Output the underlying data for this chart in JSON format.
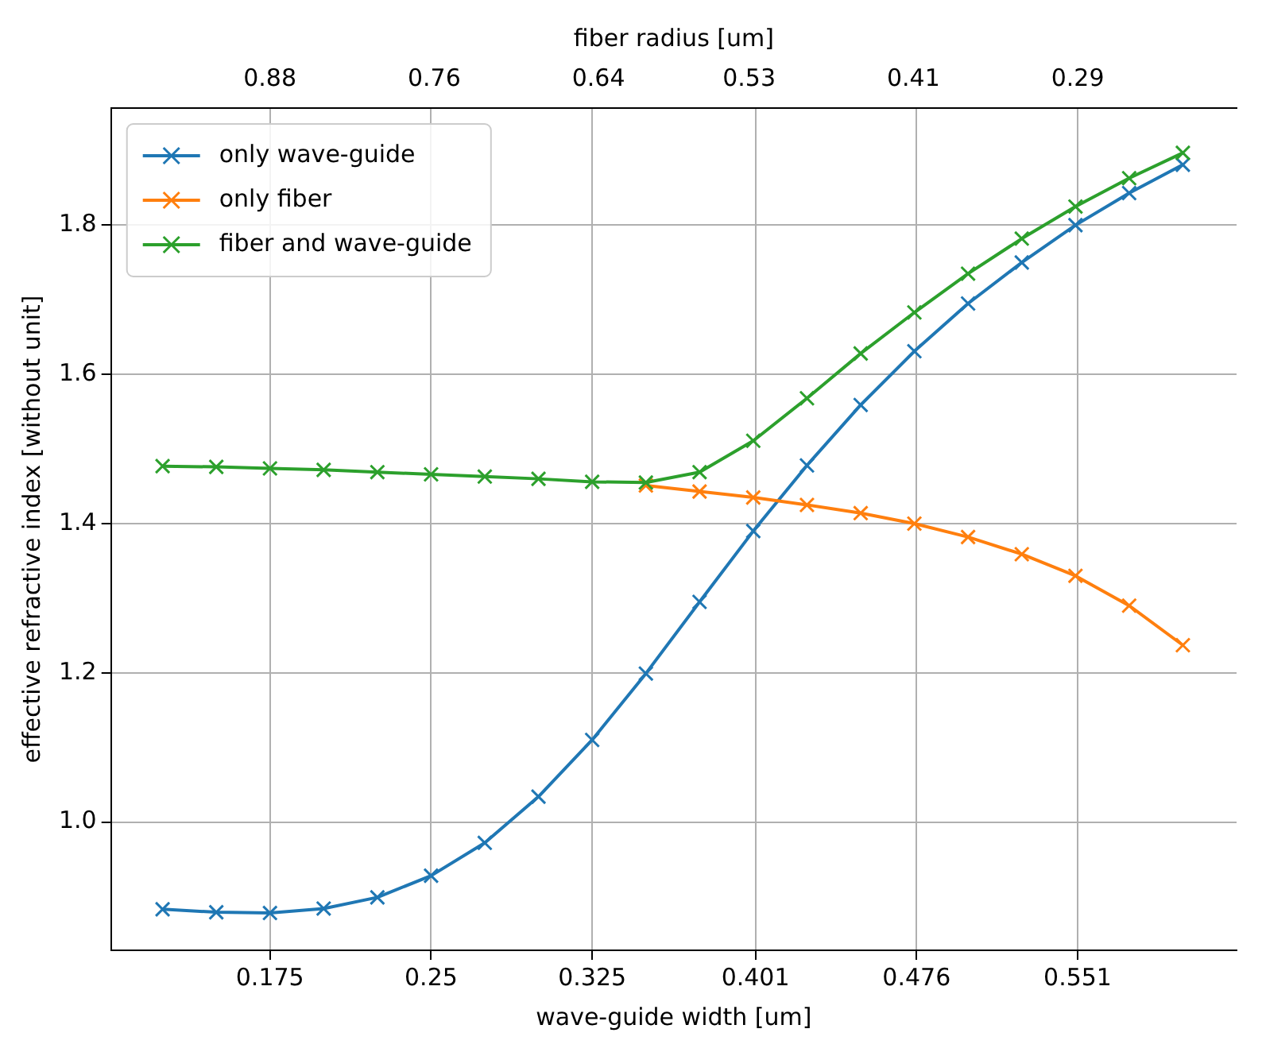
{
  "chart_data": {
    "type": "line",
    "xlabel": "wave-guide width [um]",
    "ylabel": "effective refractive index [without unit]",
    "x2label": "fiber radius [um]",
    "x": [
      0.125,
      0.15,
      0.175,
      0.2,
      0.225,
      0.25,
      0.275,
      0.3,
      0.325,
      0.35,
      0.375,
      0.4,
      0.425,
      0.45,
      0.475,
      0.5,
      0.525,
      0.55,
      0.575,
      0.6
    ],
    "series": [
      {
        "name": "only wave-guide",
        "color": "#1f77b4",
        "values": [
          0.883,
          0.879,
          0.878,
          0.884,
          0.899,
          0.928,
          0.972,
          1.034,
          1.11,
          1.199,
          1.295,
          1.39,
          1.478,
          1.559,
          1.631,
          1.695,
          1.75,
          1.8,
          1.843,
          1.881
        ]
      },
      {
        "name": "only fiber",
        "color": "#ff7f0e",
        "values": [
          null,
          null,
          null,
          null,
          null,
          null,
          null,
          null,
          null,
          1.451,
          1.443,
          1.435,
          1.425,
          1.414,
          1.4,
          1.382,
          1.359,
          1.33,
          1.29,
          1.237
        ]
      },
      {
        "name": "fiber and wave-guide",
        "color": "#2ca02c",
        "values": [
          1.477,
          1.476,
          1.474,
          1.472,
          1.469,
          1.466,
          1.463,
          1.46,
          1.456,
          1.455,
          1.469,
          1.511,
          1.568,
          1.628,
          1.683,
          1.735,
          1.782,
          1.825,
          1.863,
          1.897
        ]
      }
    ],
    "xlim": [
      0.101,
      0.625
    ],
    "xticks": [
      0.175,
      0.25,
      0.325,
      0.401,
      0.476,
      0.551
    ],
    "x2lim": [
      0.996,
      0.174
    ],
    "x2ticks": [
      0.88,
      0.76,
      0.64,
      0.53,
      0.41,
      0.29
    ],
    "ylim": [
      0.828,
      1.957
    ],
    "yticks": [
      {
        "value": 1.0,
        "label": "1.0"
      },
      {
        "value": 1.2,
        "label": "1.2"
      },
      {
        "value": 1.4,
        "label": "1.4"
      },
      {
        "value": 1.6,
        "label": "1.6"
      },
      {
        "value": 1.8,
        "label": "1.8"
      }
    ],
    "grid": true,
    "legend": "top left",
    "marker": "cross",
    "line_style": "solid"
  }
}
